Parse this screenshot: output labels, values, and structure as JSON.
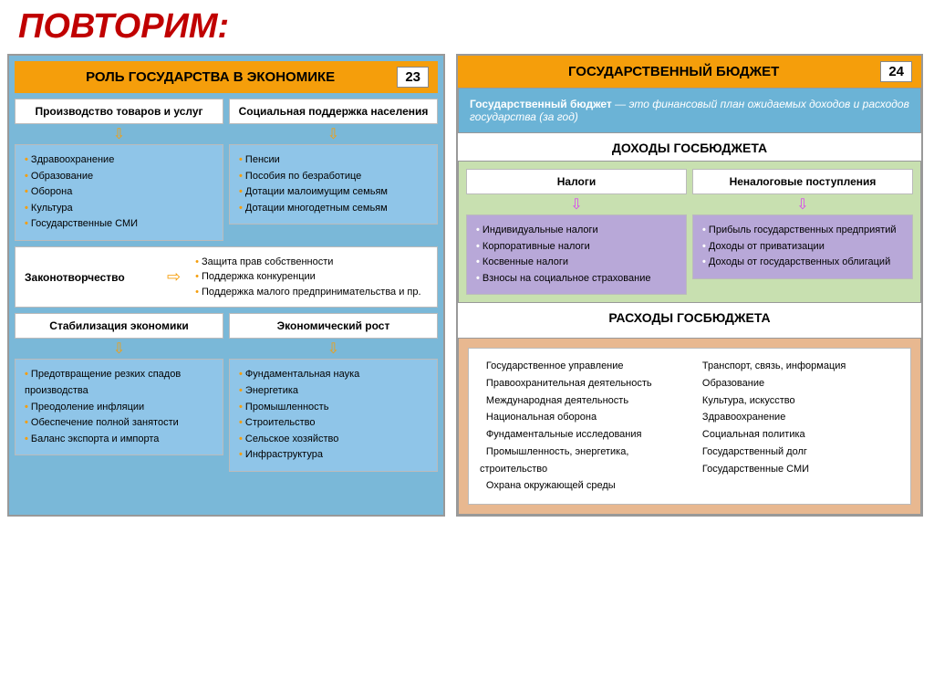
{
  "main_title": "ПОВТОРИМ:",
  "left": {
    "header": "РОЛЬ ГОСУДАРСТВА В ЭКОНОМИКЕ",
    "page": "23",
    "row1": {
      "col1": {
        "title": "Производство товаров и услуг",
        "items": [
          "Здравоохранение",
          "Образование",
          "Оборона",
          "Культура",
          "Государственные СМИ"
        ]
      },
      "col2": {
        "title": "Социальная поддержка населения",
        "items": [
          "Пенсии",
          "Пособия по безработице",
          "Дотации малоимущим семьям",
          "Дотации многодетным семьям"
        ]
      }
    },
    "law": {
      "label": "Законотворчество",
      "items": [
        "Защита прав собственности",
        "Поддержка конкуренции",
        "Поддержка малого предпринимательства и пр."
      ]
    },
    "row2": {
      "col1": {
        "title": "Стабилизация экономики",
        "items": [
          "Предотвращение резких спадов производства",
          "Преодоление инфляции",
          "Обеспечение полной занятости",
          "Баланс экспорта и импорта"
        ]
      },
      "col2": {
        "title": "Экономический рост",
        "items": [
          "Фундаментальная наука",
          "Энергетика",
          "Промышленность",
          "Строительство",
          "Сельское хозяйство",
          "Инфраструктура"
        ]
      }
    }
  },
  "right": {
    "header": "ГОСУДАРСТВЕННЫЙ БЮДЖЕТ",
    "page": "24",
    "definition_bold": "Государственный бюджет",
    "definition_rest": " — это финансовый план ожидаемых доходов и расходов государства (за год)",
    "income": {
      "title": "ДОХОДЫ ГОСБЮДЖЕТА",
      "col1": {
        "title": "Налоги",
        "items": [
          "Индивидуальные налоги",
          "Корпоративные налоги",
          "Косвенные налоги",
          "Взносы на социальное страхование"
        ]
      },
      "col2": {
        "title": "Неналоговые поступления",
        "items": [
          "Прибыль государственных предприятий",
          "Доходы от приватизации",
          "Доходы от государственных облигаций"
        ]
      }
    },
    "expense": {
      "title": "РАСХОДЫ ГОСБЮДЖЕТА",
      "items": [
        "Государственное управление",
        "Правоохранительная деятельность",
        "Международная деятельность",
        "Национальная оборона",
        "Фундаментальные исследования",
        "Промышленность, энергетика, строительство",
        "Охрана окружающей среды",
        "Транспорт, связь, информация",
        "Образование",
        "Культура, искусство",
        "Здравоохранение",
        "Социальная политика",
        "Государственный долг",
        "Государственные СМИ"
      ]
    }
  },
  "colors": {
    "accent": "#f59e0b",
    "title": "#c00000",
    "blue": "#7ab8d8",
    "purple": "#b8a8d8",
    "green": "#c8e0b0",
    "orange": "#e8b890"
  }
}
